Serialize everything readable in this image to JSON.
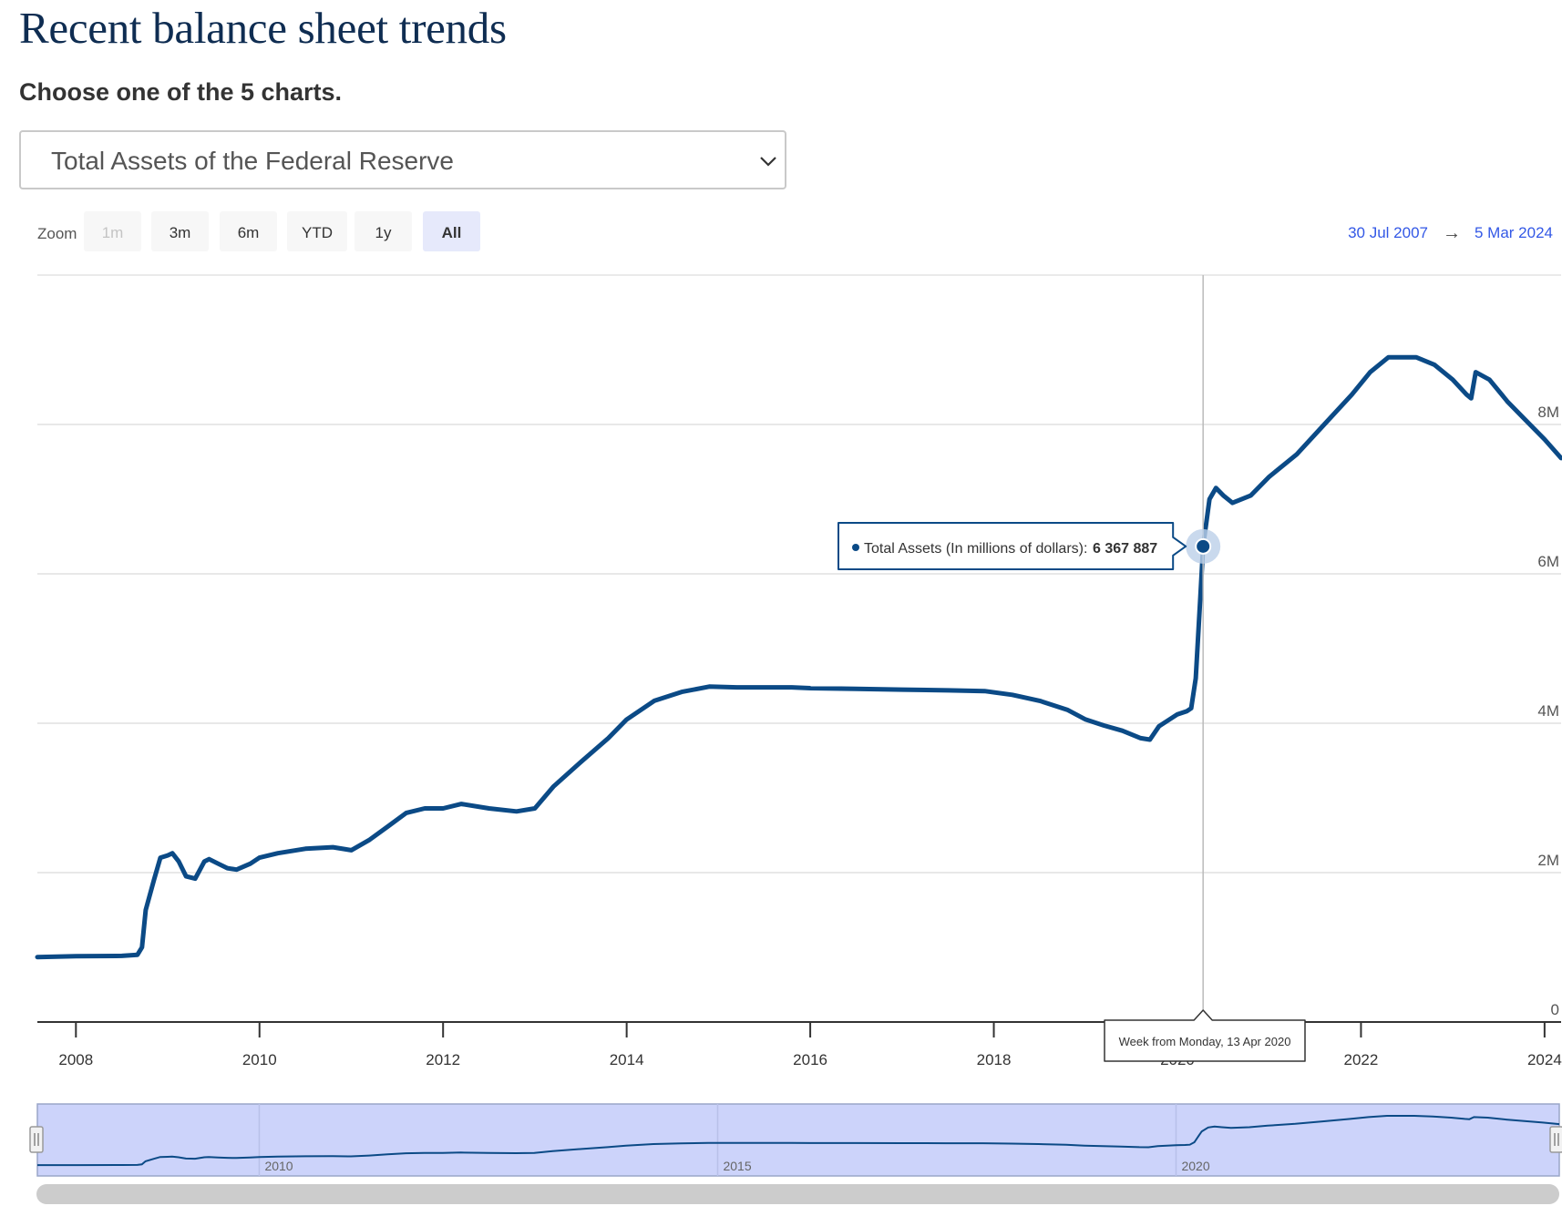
{
  "page": {
    "title": "Recent balance sheet trends",
    "subtitle": "Choose one of the 5 charts."
  },
  "selector": {
    "selected": "Total Assets of the Federal Reserve"
  },
  "zoom": {
    "label": "Zoom",
    "buttons": [
      {
        "label": "1m",
        "state": "disabled"
      },
      {
        "label": "3m",
        "state": "normal"
      },
      {
        "label": "6m",
        "state": "normal"
      },
      {
        "label": "YTD",
        "state": "normal"
      },
      {
        "label": "1y",
        "state": "normal"
      },
      {
        "label": "All",
        "state": "selected"
      }
    ]
  },
  "range": {
    "from": "30 Jul 2007",
    "arrow": "→",
    "to": "5 Mar 2024"
  },
  "colors": {
    "series": "#0b4a86",
    "accent": "#3358e6",
    "navigator_fill": "#ccd3fa",
    "selected_button": "#e6e9fb"
  },
  "chart_data": {
    "type": "line",
    "series": [
      {
        "name": "Total Assets (In millions of dollars)",
        "points": [
          [
            2007.58,
            870000
          ],
          [
            2008.0,
            880000
          ],
          [
            2008.5,
            885000
          ],
          [
            2008.67,
            900000
          ],
          [
            2008.72,
            1000000
          ],
          [
            2008.76,
            1500000
          ],
          [
            2008.85,
            1900000
          ],
          [
            2008.92,
            2200000
          ],
          [
            2009.0,
            2230000
          ],
          [
            2009.05,
            2260000
          ],
          [
            2009.12,
            2150000
          ],
          [
            2009.2,
            1950000
          ],
          [
            2009.3,
            1920000
          ],
          [
            2009.4,
            2150000
          ],
          [
            2009.45,
            2180000
          ],
          [
            2009.55,
            2120000
          ],
          [
            2009.65,
            2060000
          ],
          [
            2009.75,
            2040000
          ],
          [
            2009.9,
            2120000
          ],
          [
            2010.0,
            2200000
          ],
          [
            2010.2,
            2260000
          ],
          [
            2010.5,
            2320000
          ],
          [
            2010.8,
            2340000
          ],
          [
            2011.0,
            2300000
          ],
          [
            2011.2,
            2440000
          ],
          [
            2011.4,
            2620000
          ],
          [
            2011.6,
            2800000
          ],
          [
            2011.8,
            2860000
          ],
          [
            2012.0,
            2860000
          ],
          [
            2012.2,
            2920000
          ],
          [
            2012.5,
            2860000
          ],
          [
            2012.8,
            2820000
          ],
          [
            2013.0,
            2860000
          ],
          [
            2013.2,
            3150000
          ],
          [
            2013.5,
            3480000
          ],
          [
            2013.8,
            3800000
          ],
          [
            2014.0,
            4050000
          ],
          [
            2014.3,
            4300000
          ],
          [
            2014.6,
            4420000
          ],
          [
            2014.9,
            4490000
          ],
          [
            2015.2,
            4480000
          ],
          [
            2015.5,
            4480000
          ],
          [
            2015.8,
            4480000
          ],
          [
            2016.0,
            4470000
          ],
          [
            2016.5,
            4460000
          ],
          [
            2017.0,
            4450000
          ],
          [
            2017.5,
            4440000
          ],
          [
            2017.9,
            4430000
          ],
          [
            2018.2,
            4380000
          ],
          [
            2018.5,
            4300000
          ],
          [
            2018.8,
            4180000
          ],
          [
            2019.0,
            4050000
          ],
          [
            2019.2,
            3970000
          ],
          [
            2019.4,
            3900000
          ],
          [
            2019.6,
            3800000
          ],
          [
            2019.7,
            3780000
          ],
          [
            2019.8,
            3960000
          ],
          [
            2020.0,
            4120000
          ],
          [
            2020.1,
            4160000
          ],
          [
            2020.15,
            4200000
          ],
          [
            2020.2,
            4600000
          ],
          [
            2020.25,
            5700000
          ],
          [
            2020.28,
            6367887
          ],
          [
            2020.35,
            7000000
          ],
          [
            2020.42,
            7150000
          ],
          [
            2020.5,
            7050000
          ],
          [
            2020.6,
            6950000
          ],
          [
            2020.8,
            7050000
          ],
          [
            2021.0,
            7300000
          ],
          [
            2021.3,
            7600000
          ],
          [
            2021.6,
            8000000
          ],
          [
            2021.9,
            8400000
          ],
          [
            2022.1,
            8700000
          ],
          [
            2022.3,
            8900000
          ],
          [
            2022.6,
            8900000
          ],
          [
            2022.8,
            8800000
          ],
          [
            2023.0,
            8600000
          ],
          [
            2023.15,
            8400000
          ],
          [
            2023.2,
            8350000
          ],
          [
            2023.25,
            8700000
          ],
          [
            2023.4,
            8600000
          ],
          [
            2023.6,
            8300000
          ],
          [
            2023.8,
            8050000
          ],
          [
            2024.0,
            7800000
          ],
          [
            2024.18,
            7550000
          ]
        ]
      }
    ],
    "x_ticks": [
      "2008",
      "2010",
      "2012",
      "2014",
      "2016",
      "2018",
      "2020",
      "2022",
      "2024"
    ],
    "y_ticks": [
      "0",
      "2M",
      "4M",
      "6M",
      "8M"
    ],
    "xlim": [
      2007.58,
      2024.18
    ],
    "ylim": [
      0,
      10000000
    ],
    "grid": true,
    "tooltip": {
      "x": 2020.28,
      "y": 6367887,
      "series_label": "Total Assets (In millions of dollars):",
      "value_text": "6 367 887",
      "date_text": "Week from Monday, 13 Apr 2020"
    },
    "navigator": {
      "ticks": [
        "2010",
        "2015",
        "2020"
      ]
    }
  }
}
